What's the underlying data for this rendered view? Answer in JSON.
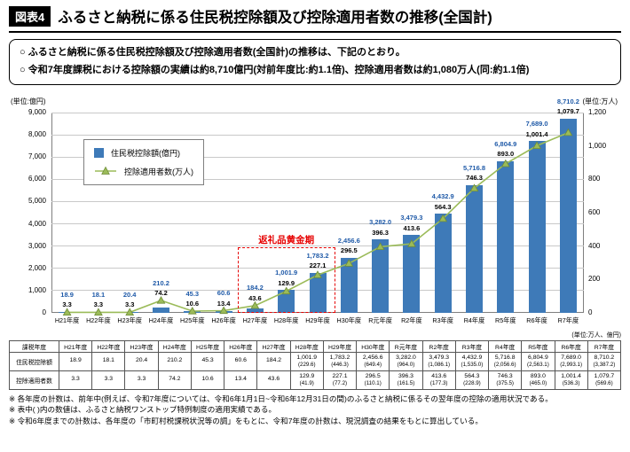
{
  "header": {
    "badge": "図表4",
    "title": "ふるさと納税に係る住民税控除額及び控除適用者数の推移(全国計)"
  },
  "summary": {
    "bullet1": "○ ふるさと納税に係る住民税控除額及び控除適用者数(全国計)の推移は、下記のとおり。",
    "bullet2": "○ 令和7年度課税における控除額の実績は約8,710億円(対前年度比:約1.1倍)、控除適用者数は約1,080万人(同:約1.1倍)"
  },
  "chart_data": {
    "type": "bar+line combo",
    "unit_left": "(単位:億円)",
    "unit_right": "(単位:万人)",
    "categories": [
      "H21年度",
      "H22年度",
      "H23年度",
      "H24年度",
      "H25年度",
      "H26年度",
      "H27年度",
      "H28年度",
      "H29年度",
      "H30年度",
      "R元年度",
      "R2年度",
      "R3年度",
      "R4年度",
      "R5年度",
      "R6年度",
      "R7年度"
    ],
    "series": [
      {
        "name": "住民税控除額(億円)",
        "type": "bar",
        "axis": "left",
        "color": "#3e7ab8",
        "values": [
          18.9,
          18.1,
          20.4,
          210.2,
          45.3,
          60.6,
          184.2,
          1001.9,
          1783.2,
          2456.6,
          3282.0,
          3479.3,
          4432.9,
          5716.8,
          6804.9,
          7689.0,
          8710.2
        ],
        "labels": [
          "18.9",
          "18.1",
          "20.4",
          "210.2",
          "45.3",
          "60.6",
          "184.2",
          "1,001.9",
          "1,783.2",
          "2,456.6",
          "3,282.0",
          "3,479.3",
          "4,432.9",
          "5,716.8",
          "6,804.9",
          "7,689.0",
          "8,710.2"
        ]
      },
      {
        "name": "控除適用者数(万人)",
        "type": "line",
        "axis": "right",
        "color": "#9bbb59",
        "values": [
          3.3,
          3.3,
          3.3,
          74.2,
          10.6,
          13.4,
          43.6,
          129.9,
          227.1,
          296.5,
          396.3,
          413.6,
          564.3,
          746.3,
          893.0,
          1001.4,
          1079.7
        ],
        "labels": [
          "3.3",
          "3.3",
          "3.3",
          "74.2",
          "10.6",
          "13.4",
          "43.6",
          "129.9",
          "227.1",
          "296.5",
          "396.3",
          "413.6",
          "564.3",
          "746.3",
          "893.0",
          "1,001.4",
          "1,079.7"
        ]
      }
    ],
    "left_axis": {
      "min": 0,
      "max": 9000,
      "step": 1000
    },
    "right_axis": {
      "min": 0,
      "max": 1200,
      "step": 200
    },
    "grid": true,
    "legend_position": "top-left-inside",
    "annotation": {
      "label": "返礼品黄金期",
      "start_index": 6,
      "end_index": 8,
      "color": "#e60000"
    }
  },
  "table": {
    "unit_note": "(単位:万人、億円)",
    "corner": "課税年度",
    "columns": [
      "H21年度",
      "H22年度",
      "H23年度",
      "H24年度",
      "H25年度",
      "H26年度",
      "H27年度",
      "H28年度",
      "H29年度",
      "H30年度",
      "R元年度",
      "R2年度",
      "R3年度",
      "R4年度",
      "R5年度",
      "R6年度",
      "R7年度"
    ],
    "rows": [
      {
        "label": "住民税控除額",
        "values": [
          "18.9",
          "18.1",
          "20.4",
          "210.2",
          "45.3",
          "60.6",
          "184.2",
          "1,001.9",
          "1,783.2",
          "2,456.6",
          "3,282.0",
          "3,479.3",
          "4,432.9",
          "5,716.8",
          "6,804.9",
          "7,689.0",
          "8,710.2"
        ],
        "subvalues": [
          "",
          "",
          "",
          "",
          "",
          "",
          "",
          "(229.6)",
          "(446.3)",
          "(649.4)",
          "(964.0)",
          "(1,086.1)",
          "(1,535.0)",
          "(2,056.6)",
          "(2,563.1)",
          "(2,993.1)",
          "(3,387.2)"
        ]
      },
      {
        "label": "控除適用者数",
        "values": [
          "3.3",
          "3.3",
          "3.3",
          "74.2",
          "10.6",
          "13.4",
          "43.6",
          "129.9",
          "227.1",
          "296.5",
          "396.3",
          "413.6",
          "564.3",
          "746.3",
          "893.0",
          "1,001.4",
          "1,079.7"
        ],
        "subvalues": [
          "",
          "",
          "",
          "",
          "",
          "",
          "",
          "(41.9)",
          "(77.2)",
          "(110.1)",
          "(161.5)",
          "(177.3)",
          "(228.9)",
          "(375.5)",
          "(465.0)",
          "(536.3)",
          "(569.6)"
        ]
      }
    ]
  },
  "footnotes": [
    "※ 各年度の計数は、前年中(例えば、令和7年度については、令和6年1月1日~令和6年12月31日の間)のふるさと納税に係るその翌年度の控除の適用状況である。",
    "※ 表中( )内の数値は、ふるさと納税ワンストップ特例制度の適用実績である。",
    "※ 令和6年度までの計数は、各年度の「市町村税課税状況等の調」をもとに、令和7年度の計数は、現況調査の結果をもとに算出している。"
  ]
}
